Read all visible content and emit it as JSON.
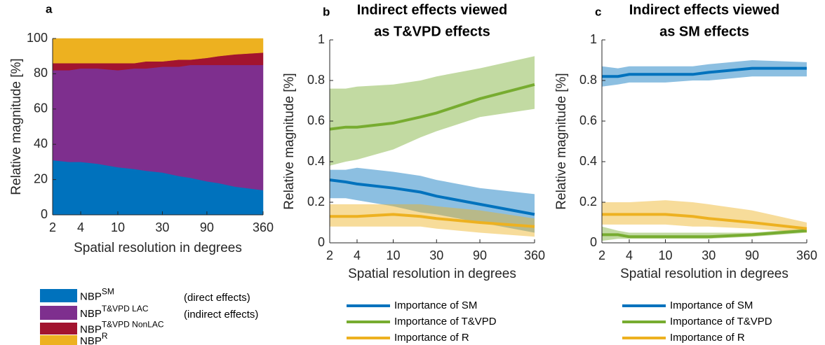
{
  "chart_data": [
    {
      "type": "area",
      "panel_label": "a",
      "xscale": "log",
      "x": [
        2,
        3,
        4,
        6,
        10,
        15,
        20,
        30,
        45,
        60,
        90,
        120,
        180,
        360
      ],
      "xlim": [
        2,
        360
      ],
      "xticks": [
        2,
        4,
        10,
        30,
        90,
        360
      ],
      "ylim": [
        0,
        100
      ],
      "yticks": [
        0,
        20,
        40,
        60,
        80,
        100
      ],
      "ylabel": "Relative magnitude [%]",
      "xlabel": "Spatial resolution in degrees",
      "series": [
        {
          "name": "NBP",
          "name_superscript": "SM",
          "color": "#0072bd",
          "values": [
            31,
            30,
            30,
            29,
            27,
            26,
            25,
            24,
            22,
            21,
            19,
            18,
            16,
            14
          ]
        },
        {
          "name": "NBP",
          "name_superscript": "T&VPD LAC",
          "color": "#7e2f8e",
          "values": [
            51,
            52,
            53,
            54,
            55,
            57,
            58,
            60,
            62,
            64,
            66,
            67,
            69,
            71
          ]
        },
        {
          "name": "NBP",
          "name_superscript": "T&VPD NonLAC",
          "color": "#a2142f",
          "values": [
            4,
            4,
            3,
            3,
            4,
            3,
            4,
            3,
            4,
            3,
            4,
            5,
            6,
            7
          ]
        },
        {
          "name": "NBP",
          "name_superscript": "R",
          "color": "#edb120",
          "values": [
            14,
            14,
            14,
            14,
            14,
            14,
            13,
            13,
            12,
            12,
            11,
            10,
            9,
            8
          ]
        }
      ],
      "notes": [
        "(direct effects)",
        "(indirect effects)"
      ]
    },
    {
      "type": "line",
      "panel_label": "b",
      "title": [
        "Indirect effects viewed",
        "as T&VPD effects"
      ],
      "xscale": "log",
      "x": [
        2,
        3,
        4,
        10,
        20,
        30,
        90,
        360
      ],
      "xlim": [
        2,
        360
      ],
      "xticks": [
        2,
        4,
        10,
        30,
        90,
        360
      ],
      "ylim": [
        0,
        1
      ],
      "yticks": [
        0,
        0.2,
        0.4,
        0.6,
        0.8,
        1
      ],
      "ylabel": "Relative magnitude [%]",
      "xlabel": "Spatial resolution in degrees",
      "series": [
        {
          "name": "Importance of SM",
          "color": "#0072bd",
          "values": [
            0.31,
            0.3,
            0.29,
            0.27,
            0.25,
            0.23,
            0.19,
            0.14
          ],
          "lower": [
            0.22,
            0.22,
            0.21,
            0.18,
            0.15,
            0.14,
            0.1,
            0.05
          ],
          "upper": [
            0.36,
            0.36,
            0.37,
            0.35,
            0.33,
            0.31,
            0.27,
            0.24
          ]
        },
        {
          "name": "Importance of T&VPD",
          "color": "#77ac30",
          "values": [
            0.56,
            0.57,
            0.57,
            0.59,
            0.62,
            0.64,
            0.71,
            0.78
          ],
          "lower": [
            0.38,
            0.4,
            0.41,
            0.46,
            0.52,
            0.55,
            0.62,
            0.66
          ],
          "upper": [
            0.76,
            0.76,
            0.77,
            0.78,
            0.8,
            0.82,
            0.86,
            0.92
          ]
        },
        {
          "name": "Importance of R",
          "color": "#edb120",
          "values": [
            0.13,
            0.13,
            0.13,
            0.14,
            0.13,
            0.12,
            0.1,
            0.08
          ],
          "lower": [
            0.08,
            0.08,
            0.08,
            0.08,
            0.08,
            0.07,
            0.05,
            0.03
          ],
          "upper": [
            0.19,
            0.19,
            0.19,
            0.19,
            0.19,
            0.18,
            0.16,
            0.12
          ]
        }
      ]
    },
    {
      "type": "line",
      "panel_label": "c",
      "title": [
        "Indirect effects viewed",
        "as SM effects"
      ],
      "xscale": "log",
      "x": [
        2,
        3,
        4,
        10,
        20,
        30,
        90,
        360
      ],
      "xlim": [
        2,
        360
      ],
      "xticks": [
        2,
        4,
        10,
        30,
        90,
        360
      ],
      "ylim": [
        0,
        1
      ],
      "yticks": [
        0,
        0.2,
        0.4,
        0.6,
        0.8,
        1
      ],
      "ylabel": "Relative magnitude [%]",
      "xlabel": "Spatial resolution in degrees",
      "series": [
        {
          "name": "Importance of SM",
          "color": "#0072bd",
          "values": [
            0.82,
            0.82,
            0.83,
            0.83,
            0.83,
            0.84,
            0.86,
            0.86
          ],
          "lower": [
            0.77,
            0.78,
            0.79,
            0.79,
            0.8,
            0.8,
            0.82,
            0.82
          ],
          "upper": [
            0.87,
            0.86,
            0.87,
            0.87,
            0.87,
            0.88,
            0.9,
            0.89
          ]
        },
        {
          "name": "Importance of T&VPD",
          "color": "#77ac30",
          "values": [
            0.04,
            0.04,
            0.03,
            0.03,
            0.03,
            0.03,
            0.04,
            0.06
          ],
          "lower": [
            0.01,
            0.02,
            0.02,
            0.02,
            0.02,
            0.02,
            0.03,
            0.05
          ],
          "upper": [
            0.08,
            0.06,
            0.05,
            0.05,
            0.05,
            0.05,
            0.05,
            0.07
          ]
        },
        {
          "name": "Importance of R",
          "color": "#edb120",
          "values": [
            0.14,
            0.14,
            0.14,
            0.14,
            0.13,
            0.12,
            0.1,
            0.07
          ],
          "lower": [
            0.09,
            0.09,
            0.09,
            0.09,
            0.08,
            0.08,
            0.07,
            0.05
          ],
          "upper": [
            0.2,
            0.2,
            0.2,
            0.21,
            0.2,
            0.19,
            0.16,
            0.1
          ]
        }
      ]
    }
  ]
}
